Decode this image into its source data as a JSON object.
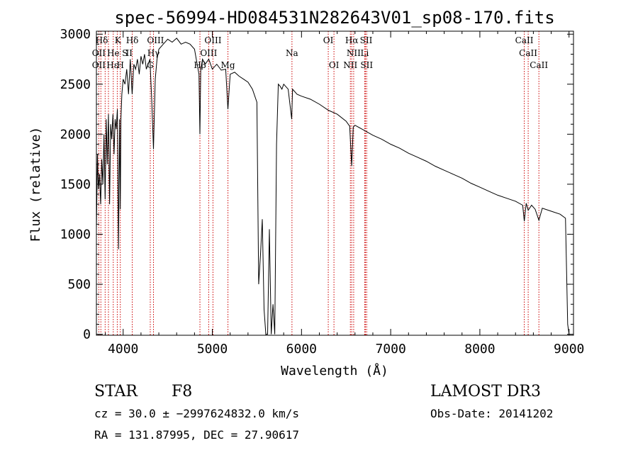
{
  "chart_data": {
    "type": "line",
    "title": "spec-56994-HD084531N282643V01_sp08-170.fits",
    "xlabel": "Wavelength (Å)",
    "ylabel": "Flux (relative)",
    "xlim": [
      3700,
      9050
    ],
    "ylim": [
      -10,
      3030
    ],
    "xticks": [
      4000,
      5000,
      6000,
      7000,
      8000,
      9000
    ],
    "yticks": [
      0,
      500,
      1000,
      1500,
      2000,
      2500,
      3000
    ],
    "grid": false,
    "series": [
      {
        "name": "flux",
        "x": [
          3700,
          3712,
          3722,
          3735,
          3748,
          3760,
          3772,
          3785,
          3798,
          3810,
          3822,
          3835,
          3848,
          3860,
          3872,
          3885,
          3898,
          3910,
          3922,
          3935,
          3948,
          3960,
          3968,
          3975,
          3985,
          4000,
          4020,
          4040,
          4060,
          4080,
          4101,
          4120,
          4140,
          4160,
          4180,
          4200,
          4220,
          4240,
          4260,
          4280,
          4300,
          4320,
          4340,
          4360,
          4380,
          4400,
          4450,
          4500,
          4550,
          4600,
          4650,
          4700,
          4750,
          4800,
          4830,
          4850,
          4861,
          4870,
          4890,
          4920,
          4960,
          5000,
          5050,
          5100,
          5150,
          5175,
          5200,
          5250,
          5300,
          5350,
          5400,
          5450,
          5500,
          5520,
          5540,
          5560,
          5580,
          5600,
          5620,
          5640,
          5660,
          5680,
          5700,
          5720,
          5740,
          5760,
          5780,
          5800,
          5850,
          5890,
          5900,
          5950,
          6000,
          6100,
          6200,
          6300,
          6400,
          6500,
          6540,
          6563,
          6580,
          6600,
          6700,
          6800,
          6900,
          7000,
          7100,
          7200,
          7300,
          7400,
          7500,
          7600,
          7700,
          7800,
          7900,
          8000,
          8100,
          8200,
          8300,
          8400,
          8480,
          8498,
          8520,
          8542,
          8580,
          8620,
          8662,
          8700,
          8800,
          8900,
          8960,
          8985,
          9000
        ],
        "values": [
          1050,
          1800,
          1450,
          1600,
          1300,
          1750,
          1500,
          2000,
          1350,
          2150,
          1700,
          2200,
          1300,
          2100,
          1950,
          2200,
          1800,
          2150,
          2050,
          2250,
          850,
          2150,
          1250,
          2150,
          2400,
          2550,
          2500,
          2650,
          2400,
          2750,
          2400,
          2700,
          2650,
          2750,
          2600,
          2780,
          2700,
          2800,
          2650,
          2700,
          2750,
          2350,
          1850,
          2550,
          2750,
          2850,
          2900,
          2950,
          2920,
          2960,
          2900,
          2920,
          2900,
          2850,
          2700,
          2600,
          2000,
          2650,
          2750,
          2700,
          2750,
          2650,
          2700,
          2640,
          2650,
          2250,
          2600,
          2620,
          2580,
          2550,
          2520,
          2450,
          2320,
          500,
          800,
          1150,
          250,
          0,
          0,
          1050,
          0,
          300,
          0,
          1900,
          2500,
          2480,
          2450,
          2500,
          2450,
          2150,
          2450,
          2400,
          2380,
          2350,
          2300,
          2240,
          2200,
          2130,
          2080,
          1680,
          2070,
          2090,
          2040,
          1990,
          1950,
          1900,
          1860,
          1810,
          1770,
          1730,
          1680,
          1640,
          1600,
          1560,
          1510,
          1470,
          1430,
          1390,
          1360,
          1330,
          1290,
          1130,
          1310,
          1240,
          1290,
          1250,
          1140,
          1260,
          1230,
          1200,
          1160,
          100,
          0
        ]
      }
    ],
    "line_labels": [
      {
        "text": "Hδ",
        "x": 3760,
        "row": 1
      },
      {
        "text": "K",
        "x": 3940,
        "row": 1
      },
      {
        "text": "Hδ",
        "x": 4102,
        "row": 1
      },
      {
        "text": "OIII",
        "x": 4363,
        "row": 1
      },
      {
        "text": "OIII",
        "x": 5007,
        "row": 1
      },
      {
        "text": "OI",
        "x": 6300,
        "row": 1
      },
      {
        "text": "Hα",
        "x": 6563,
        "row": 1
      },
      {
        "text": "SII",
        "x": 6725,
        "row": 1
      },
      {
        "text": "CaII",
        "x": 8498,
        "row": 1
      },
      {
        "text": "OII",
        "x": 3727,
        "row": 2
      },
      {
        "text": "He",
        "x": 3889,
        "row": 2
      },
      {
        "text": "S",
        "x": 4020,
        "row": 2
      },
      {
        "text": "II",
        "x": 4068,
        "row": 2
      },
      {
        "text": "Hγ",
        "x": 4340,
        "row": 2
      },
      {
        "text": "OIII",
        "x": 4959,
        "row": 2
      },
      {
        "text": "Na",
        "x": 5893,
        "row": 2
      },
      {
        "text": "NII",
        "x": 6585,
        "row": 2
      },
      {
        "text": "Li",
        "x": 6708,
        "row": 2
      },
      {
        "text": "CaII",
        "x": 8542,
        "row": 2
      },
      {
        "text": "OII",
        "x": 3727,
        "row": 3
      },
      {
        "text": "Hε",
        "x": 3880,
        "row": 3
      },
      {
        "text": "H",
        "x": 3968,
        "row": 3
      },
      {
        "text": "G",
        "x": 4304,
        "row": 3
      },
      {
        "text": "Hβ",
        "x": 4861,
        "row": 3
      },
      {
        "text": "Mg",
        "x": 5175,
        "row": 3
      },
      {
        "text": "OI",
        "x": 6364,
        "row": 3
      },
      {
        "text": "NII",
        "x": 6548,
        "row": 3
      },
      {
        "text": "SII",
        "x": 6731,
        "row": 3
      },
      {
        "text": "CaII",
        "x": 8662,
        "row": 3
      }
    ],
    "reference_lines": [
      3727,
      3750,
      3798,
      3835,
      3889,
      3934,
      3968,
      4102,
      4304,
      4340,
      4861,
      4959,
      5007,
      5175,
      5893,
      6300,
      6364,
      6548,
      6563,
      6585,
      6708,
      6717,
      6731,
      8498,
      8542,
      8662
    ]
  },
  "info": {
    "object_type": "STAR",
    "subclass": "F8",
    "survey": "LAMOST DR3",
    "redshift": "cz = 30.0 ± −2997624832.0 km/s",
    "obs_date": "Obs-Date: 20141202",
    "coords": "RA = 131.87995, DEC =  27.90617"
  }
}
